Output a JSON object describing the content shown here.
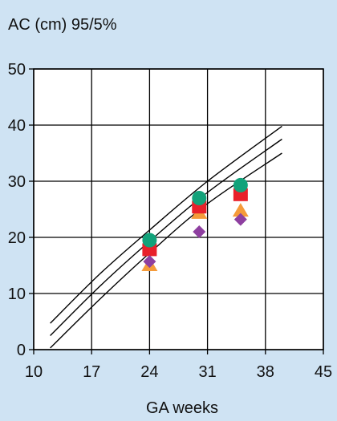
{
  "chart_data": {
    "type": "scatter",
    "title": "AC (cm) 95/5%",
    "xlabel": "GA weeks",
    "ylabel": "",
    "xlim": [
      10,
      45
    ],
    "ylim": [
      0,
      50
    ],
    "x_ticks": [
      10,
      17,
      24,
      31,
      38,
      45
    ],
    "y_ticks": [
      0,
      10,
      20,
      30,
      40,
      50
    ],
    "grid": true,
    "reference_curves": [
      {
        "x": [
          12,
          18,
          24,
          31,
          40
        ],
        "y": [
          4.7,
          13.5,
          21.3,
          30.0,
          39.8
        ]
      },
      {
        "x": [
          12,
          18,
          24,
          31,
          40
        ],
        "y": [
          2.5,
          11.3,
          19.3,
          28.0,
          37.5
        ]
      },
      {
        "x": [
          12,
          18,
          24,
          31,
          40
        ],
        "y": [
          0.3,
          9.0,
          17.2,
          26.0,
          35.0
        ]
      }
    ],
    "series": [
      {
        "marker": "triangle",
        "color": "#f59b3a",
        "points": [
          {
            "x": 24,
            "y": 15.0
          },
          {
            "x": 30,
            "y": 24.3
          },
          {
            "x": 35,
            "y": 24.7
          }
        ]
      },
      {
        "marker": "square",
        "color": "#e8202a",
        "points": [
          {
            "x": 24,
            "y": 17.8
          },
          {
            "x": 30,
            "y": 25.4
          },
          {
            "x": 35,
            "y": 27.6
          }
        ]
      },
      {
        "marker": "diamond",
        "color": "#8e3fa0",
        "points": [
          {
            "x": 24,
            "y": 15.7
          },
          {
            "x": 30,
            "y": 21.0
          },
          {
            "x": 35,
            "y": 23.2
          }
        ]
      },
      {
        "marker": "circle",
        "color": "#12a27a",
        "points": [
          {
            "x": 24,
            "y": 19.5
          },
          {
            "x": 30,
            "y": 27.0
          },
          {
            "x": 35,
            "y": 29.3
          }
        ]
      }
    ]
  }
}
